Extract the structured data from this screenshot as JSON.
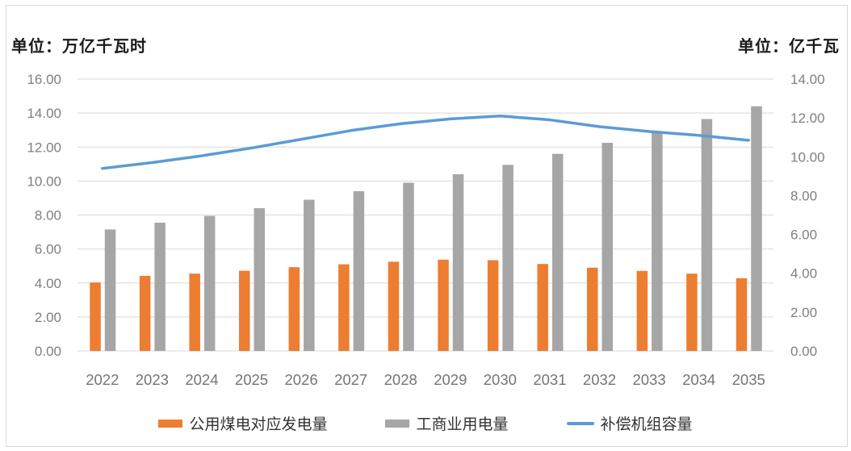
{
  "chart_data": {
    "type": "bar",
    "subtype": "grouped-bars-with-line-overlay",
    "categories": [
      "2022",
      "2023",
      "2024",
      "2025",
      "2026",
      "2027",
      "2028",
      "2029",
      "2030",
      "2031",
      "2032",
      "2033",
      "2034",
      "2035"
    ],
    "series": [
      {
        "key": "coal-generation",
        "name": "公用煤电对应发电量",
        "type": "bar",
        "axis": "left",
        "color": "#ED7D31",
        "values": [
          4.03,
          4.42,
          4.55,
          4.72,
          4.93,
          5.1,
          5.25,
          5.37,
          5.34,
          5.12,
          4.9,
          4.71,
          4.55,
          4.28
        ]
      },
      {
        "key": "industrial-commercial-consumption",
        "name": "工商业用电量",
        "type": "bar",
        "axis": "left",
        "color": "#A6A6A6",
        "values": [
          7.15,
          7.55,
          7.95,
          8.4,
          8.9,
          9.4,
          9.9,
          10.4,
          10.95,
          11.6,
          12.25,
          12.9,
          13.65,
          14.4
        ]
      },
      {
        "key": "compensation-unit-capacity",
        "name": "补偿机组容量",
        "type": "line",
        "axis": "right",
        "color": "#5B9BD5",
        "values": [
          9.4,
          9.7,
          10.05,
          10.45,
          10.9,
          11.35,
          11.7,
          11.95,
          12.1,
          11.9,
          11.55,
          11.3,
          11.1,
          10.85
        ]
      }
    ],
    "left_axis": {
      "title": "单位：万亿千瓦时",
      "min": 0,
      "max": 16,
      "step": 2,
      "tick_format": "0.00"
    },
    "right_axis": {
      "title": "单位：亿千瓦",
      "min": 0,
      "max": 14,
      "step": 2,
      "tick_format": "0.00"
    },
    "grid": true,
    "legend_position": "bottom"
  },
  "colors": {
    "gridline": "#d9d9d9",
    "frame_border": "#d9d9d9",
    "axis_text": "#7f7f7f",
    "x_axis_text": "#757575",
    "title_text": "#1a1a1a",
    "legend_text": "#333333"
  }
}
